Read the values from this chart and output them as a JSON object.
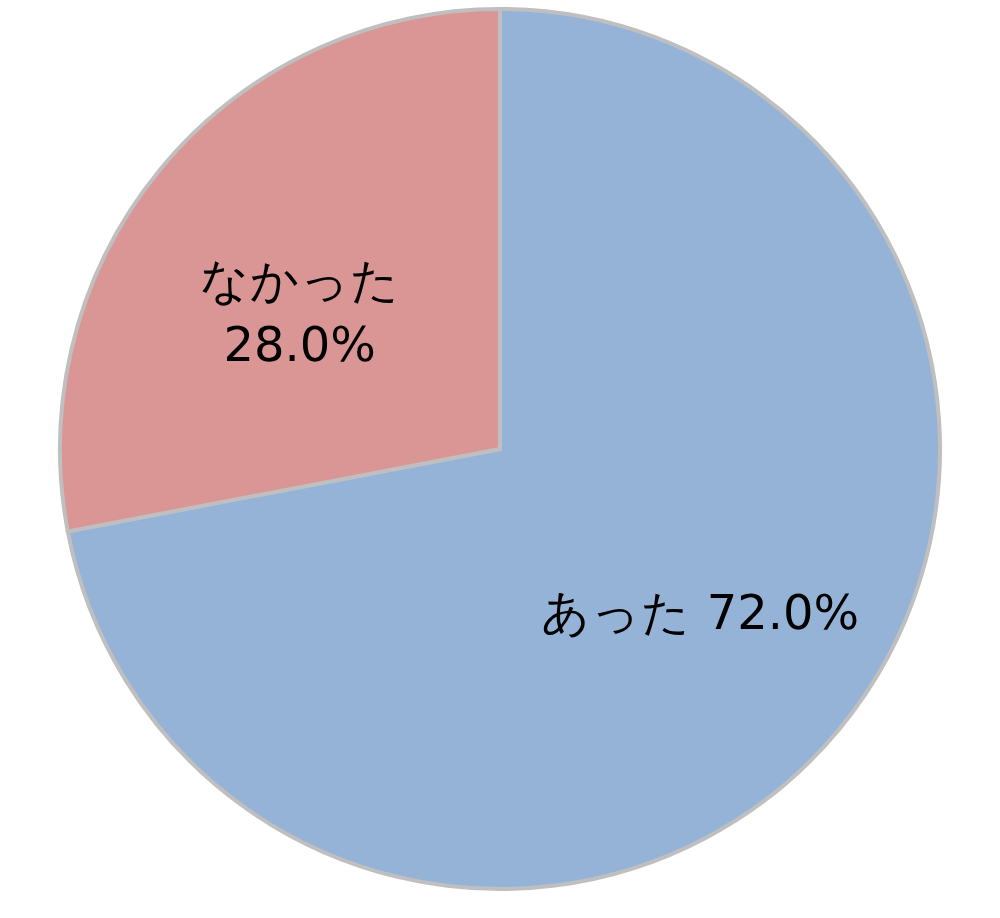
{
  "chart_data": {
    "type": "pie",
    "categories": [
      "あった",
      "なかった"
    ],
    "values": [
      72.0,
      28.0
    ],
    "value_labels": [
      "72.0%",
      "28.0%"
    ],
    "colors": [
      "#95b3d7",
      "#d99694"
    ],
    "legend": false
  }
}
